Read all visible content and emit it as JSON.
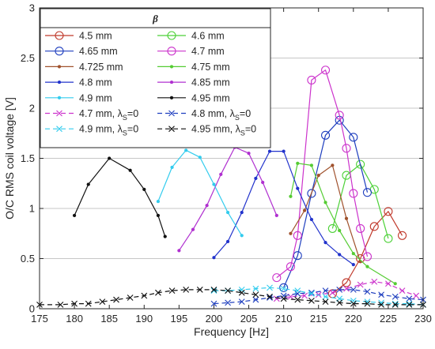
{
  "chart_data": {
    "type": "line",
    "xlabel": "Frequency [Hz]",
    "ylabel": "O/C RMS coil voltage [V]",
    "xlim": [
      175,
      230
    ],
    "ylim": [
      0,
      3
    ],
    "xticks": [
      175,
      180,
      185,
      190,
      195,
      200,
      205,
      210,
      215,
      220,
      225,
      230
    ],
    "yticks": [
      0,
      0.5,
      1,
      1.5,
      2,
      2.5,
      3
    ],
    "ytick_labels": [
      "0",
      "0.5",
      "1",
      "1.5",
      "2",
      "2.5",
      "3"
    ],
    "grid": "horizontal",
    "legend": {
      "title": "β",
      "placement": "top-left",
      "columns": 2
    },
    "series": [
      {
        "name": "4.5 mm",
        "color": "#c0392b",
        "marker": "circle",
        "dash": "solid",
        "x": [
          217,
          219,
          221,
          223,
          225,
          227
        ],
        "y": [
          0.15,
          0.26,
          0.5,
          0.82,
          0.97,
          0.73
        ]
      },
      {
        "name": "4.6 mm",
        "color": "#4cd137",
        "marker": "circle",
        "dash": "solid",
        "x": [
          217,
          219,
          221,
          223,
          225
        ],
        "y": [
          0.8,
          1.33,
          1.44,
          1.19,
          0.7
        ]
      },
      {
        "name": "4.65 mm",
        "color": "#1f3fbf",
        "marker": "circle",
        "dash": "solid",
        "x": [
          210,
          212,
          214,
          216,
          218,
          220,
          222
        ],
        "y": [
          0.21,
          0.53,
          1.15,
          1.73,
          1.88,
          1.71,
          1.16
        ]
      },
      {
        "name": "4.7 mm",
        "color": "#cc33cc",
        "marker": "circle",
        "dash": "solid",
        "x": [
          209,
          211,
          212,
          214,
          216,
          218,
          219,
          220,
          221,
          222
        ],
        "y": [
          0.31,
          0.42,
          0.73,
          2.28,
          2.38,
          1.93,
          1.6,
          1.15,
          0.8,
          0.52
        ]
      },
      {
        "name": "4.725 mm",
        "color": "#a0522d",
        "marker": "dot",
        "dash": "solid",
        "x": [
          211,
          213,
          215,
          217,
          219,
          221
        ],
        "y": [
          0.75,
          0.98,
          1.33,
          1.43,
          0.9,
          0.47
        ]
      },
      {
        "name": "4.75 mm",
        "color": "#55cc33",
        "marker": "dot",
        "dash": "solid",
        "x": [
          211,
          212,
          214,
          216,
          218,
          220,
          222,
          226
        ],
        "y": [
          1.12,
          1.45,
          1.43,
          1.06,
          0.78,
          0.55,
          0.42,
          0.25
        ]
      },
      {
        "name": "4.8 mm",
        "color": "#2233cc",
        "marker": "dot",
        "dash": "solid",
        "x": [
          200,
          202,
          204,
          206,
          208,
          210,
          212,
          214,
          216,
          218,
          220
        ],
        "y": [
          0.51,
          0.67,
          0.96,
          1.3,
          1.57,
          1.57,
          1.2,
          0.89,
          0.66,
          0.54,
          0.44
        ]
      },
      {
        "name": "4.85 mm",
        "color": "#b030d0",
        "marker": "dot",
        "dash": "solid",
        "x": [
          195,
          197,
          199,
          201,
          203,
          205,
          207,
          209
        ],
        "y": [
          0.58,
          0.79,
          1.03,
          1.34,
          1.61,
          1.55,
          1.26,
          0.93
        ]
      },
      {
        "name": "4.9 mm",
        "color": "#33ccee",
        "marker": "dot",
        "dash": "solid",
        "x": [
          192,
          194,
          196,
          198,
          200,
          202,
          204
        ],
        "y": [
          1.07,
          1.41,
          1.58,
          1.51,
          1.24,
          0.96,
          0.73
        ]
      },
      {
        "name": "4.95 mm",
        "color": "#111111",
        "marker": "dot",
        "dash": "solid",
        "x": [
          180,
          182,
          185,
          188,
          190,
          192,
          193
        ],
        "y": [
          0.93,
          1.24,
          1.5,
          1.38,
          1.19,
          0.93,
          0.72
        ]
      },
      {
        "name": "4.7 mm, λS=0",
        "color": "#cc33cc",
        "marker": "x",
        "dash": "dashed",
        "x": [
          209,
          211,
          213,
          215,
          217,
          219,
          221,
          223,
          225,
          227,
          229
        ],
        "y": [
          0.1,
          0.12,
          0.13,
          0.14,
          0.16,
          0.2,
          0.24,
          0.27,
          0.25,
          0.18,
          0.13
        ]
      },
      {
        "name": "4.8 mm, λS=0",
        "color": "#1f3fbf",
        "marker": "x",
        "dash": "dashed",
        "x": [
          200,
          202,
          204,
          206,
          208,
          210,
          212,
          214,
          216,
          218,
          220,
          222,
          224,
          226,
          228,
          230
        ],
        "y": [
          0.05,
          0.06,
          0.07,
          0.09,
          0.11,
          0.13,
          0.15,
          0.16,
          0.18,
          0.19,
          0.19,
          0.17,
          0.14,
          0.12,
          0.1,
          0.09
        ]
      },
      {
        "name": "4.9 mm, λS=0",
        "color": "#33ccee",
        "marker": "x",
        "dash": "dashed",
        "x": [
          200,
          202,
          204,
          206,
          208,
          210,
          212,
          214,
          216,
          218,
          220,
          222,
          224,
          226,
          228,
          230
        ],
        "y": [
          0.18,
          0.18,
          0.19,
          0.2,
          0.21,
          0.2,
          0.18,
          0.15,
          0.12,
          0.1,
          0.08,
          0.07,
          0.06,
          0.05,
          0.05,
          0.04
        ]
      },
      {
        "name": "4.95 mm, λS=0",
        "color": "#111111",
        "marker": "x",
        "dash": "dashed",
        "x": [
          175,
          178,
          180,
          182,
          184,
          186,
          188,
          190,
          192,
          194,
          196,
          198,
          200,
          202,
          204,
          206,
          208,
          210,
          212,
          214,
          216,
          218,
          220,
          222,
          224,
          226,
          228,
          230
        ],
        "y": [
          0.04,
          0.04,
          0.05,
          0.05,
          0.07,
          0.09,
          0.11,
          0.13,
          0.16,
          0.18,
          0.19,
          0.19,
          0.19,
          0.18,
          0.16,
          0.14,
          0.12,
          0.1,
          0.09,
          0.08,
          0.07,
          0.06,
          0.05,
          0.05,
          0.04,
          0.04,
          0.04,
          0.04
        ]
      }
    ]
  }
}
